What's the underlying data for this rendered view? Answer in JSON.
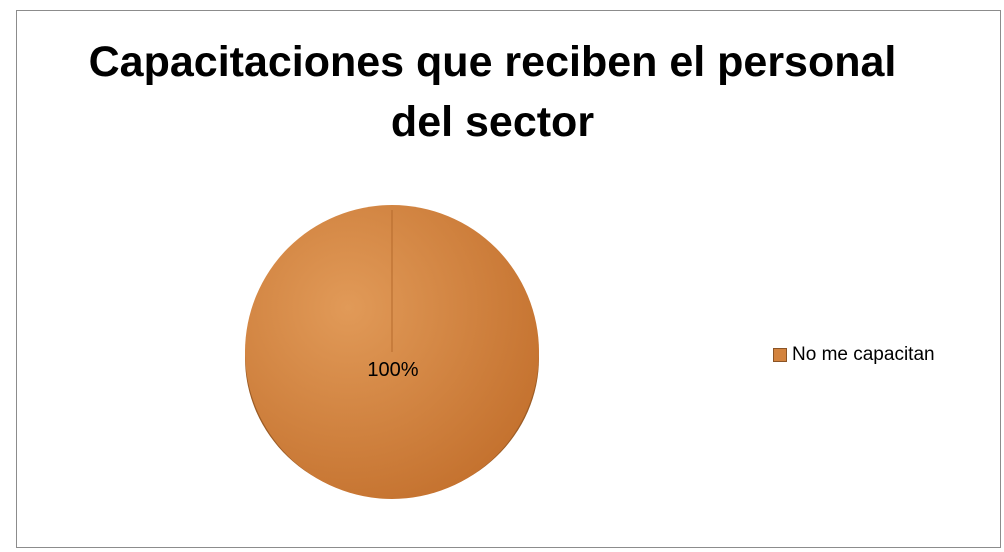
{
  "chart_data": {
    "type": "pie",
    "title_lines": [
      "Capacitaciones que reciben el personal",
      "del sector"
    ],
    "slices": [
      {
        "label": "No me capacitan",
        "value": 100,
        "data_label": "100%"
      }
    ],
    "legend_position": "right",
    "colors": {
      "slice": "#d3833e",
      "slice_light": "#e19a58",
      "slice_dark": "#c3702d",
      "edge": "#9c5c25"
    }
  }
}
